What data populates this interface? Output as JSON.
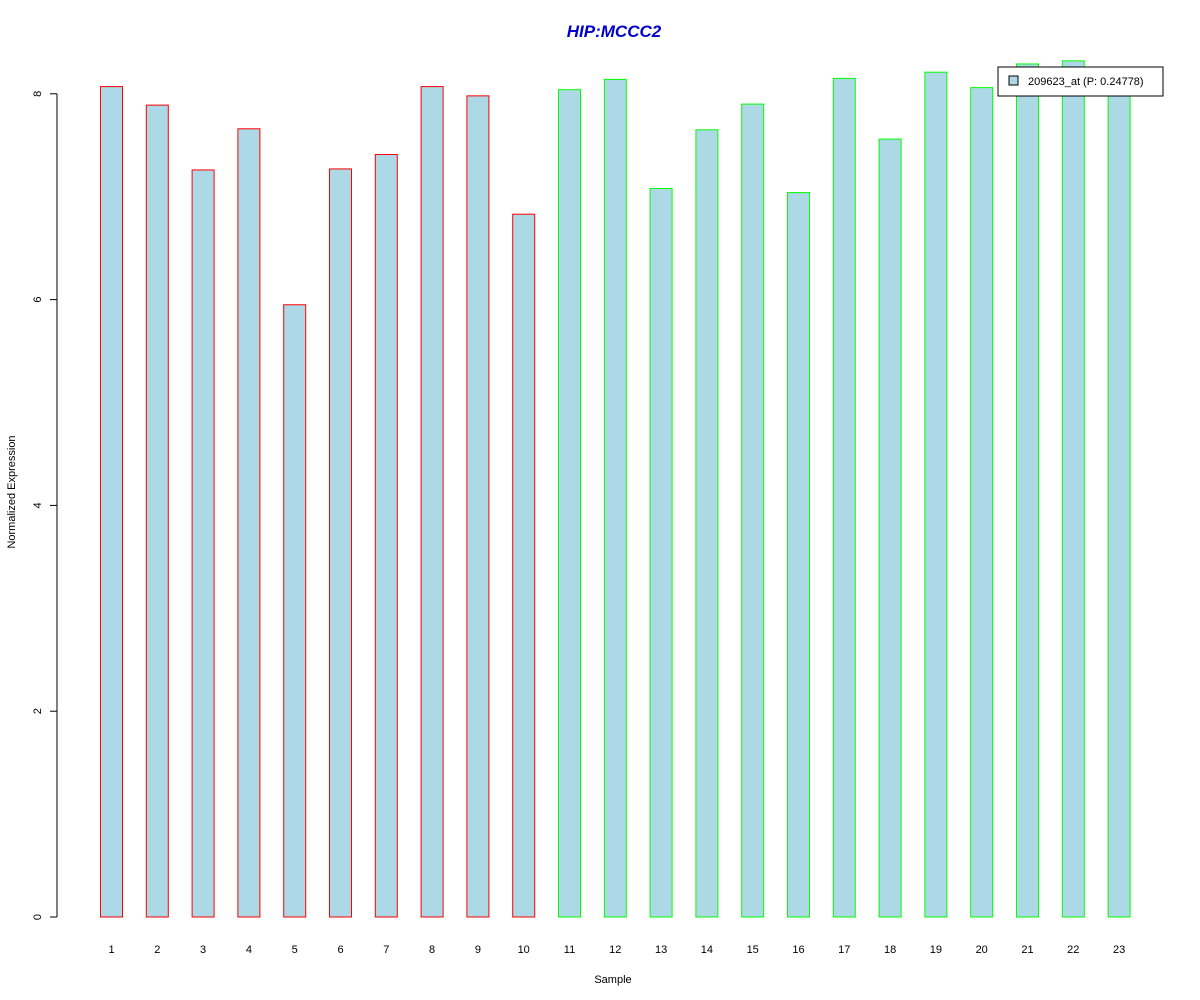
{
  "chart_data": {
    "type": "bar",
    "title": "HIP:MCCC2",
    "xlabel": "Sample",
    "ylabel": "Normalized Expression",
    "categories": [
      "1",
      "2",
      "3",
      "4",
      "5",
      "6",
      "7",
      "8",
      "9",
      "10",
      "11",
      "12",
      "13",
      "14",
      "15",
      "16",
      "17",
      "18",
      "19",
      "20",
      "21",
      "22",
      "23"
    ],
    "series": [
      {
        "name": "209623_at (P: 0.24778)",
        "values": [
          8.07,
          7.89,
          7.26,
          7.66,
          5.95,
          7.27,
          7.41,
          8.07,
          7.98,
          6.83,
          8.04,
          8.14,
          7.08,
          7.65,
          7.9,
          7.04,
          8.15,
          7.56,
          8.21,
          8.06,
          8.29,
          8.32,
          8.02
        ]
      }
    ],
    "ylim": [
      0,
      8.4
    ],
    "yticks": [
      0,
      2,
      4,
      6,
      8
    ],
    "grid": false,
    "legend_position": "top-right"
  },
  "colors": {
    "bar_fill": "#ADD8E6",
    "group1_border": "#FF0000",
    "group2_border": "#00FF00",
    "title": "#0000CD"
  },
  "bar_border_colors": [
    "#FF0000",
    "#FF0000",
    "#FF0000",
    "#FF0000",
    "#FF0000",
    "#FF0000",
    "#FF0000",
    "#FF0000",
    "#FF0000",
    "#FF0000",
    "#00FF00",
    "#00FF00",
    "#00FF00",
    "#00FF00",
    "#00FF00",
    "#00FF00",
    "#00FF00",
    "#00FF00",
    "#00FF00",
    "#00FF00",
    "#00FF00",
    "#00FF00",
    "#00FF00"
  ]
}
